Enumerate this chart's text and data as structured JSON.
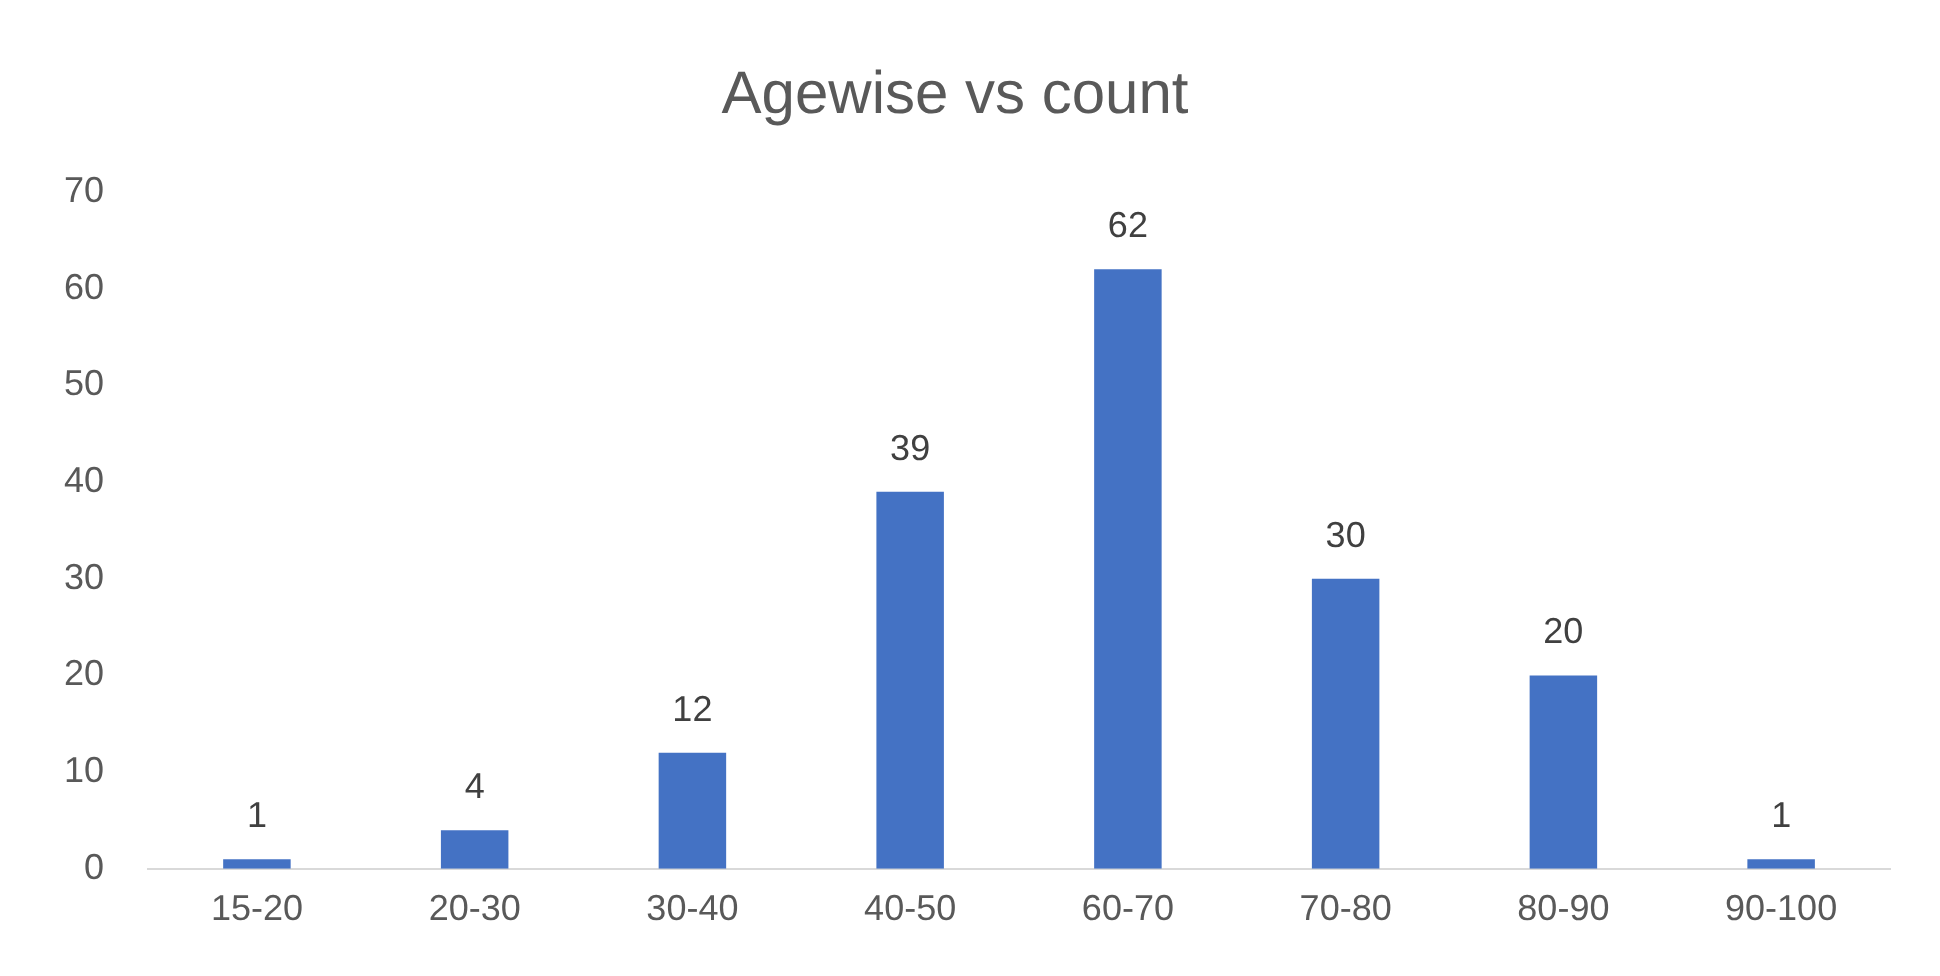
{
  "chart_data": {
    "type": "bar",
    "title": "Agewise vs count",
    "categories": [
      "15-20",
      "20-30",
      "30-40",
      "40-50",
      "60-70",
      "70-80",
      "80-90",
      "90-100"
    ],
    "values": [
      1,
      4,
      12,
      39,
      62,
      30,
      20,
      1
    ],
    "color": "#4472c4",
    "ylim": [
      0,
      70
    ],
    "yticks": [
      0,
      10,
      20,
      30,
      40,
      50,
      60,
      70
    ],
    "grid": false,
    "legend": false,
    "data_labels": true
  }
}
